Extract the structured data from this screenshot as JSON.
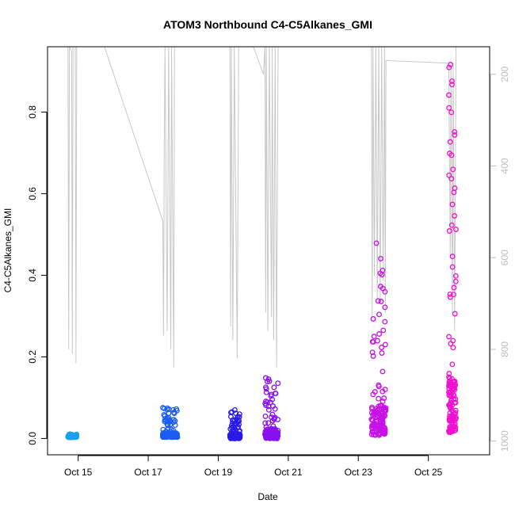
{
  "chart_data": {
    "type": "scatter",
    "title": "ATOM3 Northbound C4-C5Alkanes_GMI",
    "xlabel": "Date",
    "ylabel": "C4-C5Alkanes_GMI",
    "xlim": [
      "2016-10-14T03:00",
      "2016-10-26T18:00"
    ],
    "ylim": [
      -0.04,
      0.96
    ],
    "x_ticks": [
      {
        "label": "Oct 15",
        "date": "2016-10-15"
      },
      {
        "label": "Oct 17",
        "date": "2016-10-17"
      },
      {
        "label": "Oct 19",
        "date": "2016-10-19"
      },
      {
        "label": "Oct 21",
        "date": "2016-10-21"
      },
      {
        "label": "Oct 23",
        "date": "2016-10-23"
      },
      {
        "label": "Oct 25",
        "date": "2016-10-25"
      }
    ],
    "y_ticks": [
      "0.0",
      "0.2",
      "0.4",
      "0.6",
      "0.8"
    ],
    "y_tick_values": [
      0.0,
      0.2,
      0.4,
      0.6,
      0.8
    ],
    "right_axis": {
      "inverted": true,
      "ylim": [
        1030,
        140
      ],
      "ticks": [
        "200",
        "400",
        "600",
        "800",
        "1000"
      ],
      "tick_values": [
        200,
        400,
        600,
        800,
        1000
      ],
      "color": "#bdbdbd"
    },
    "grid": false,
    "colors": {
      "flight_1": "#1aa0f0",
      "flight_2": "#1a5cf0",
      "flight_3": "#2a1ae8",
      "flight_4": "#8a10f0",
      "flight_5": "#c810e8",
      "flight_6": "#f010d0",
      "right_axis_line": "#c8c8c8"
    },
    "flights": [
      {
        "start": "2016-10-14T17:00",
        "end": "2016-10-14T23:00",
        "color": "#1aa0f0",
        "y_min": 0.003,
        "y_max": 0.012
      },
      {
        "start": "2016-10-17T10:00",
        "end": "2016-10-17T20:00",
        "color": "#1a5cf0",
        "y_min": 0.003,
        "y_max": 0.076
      },
      {
        "start": "2016-10-19T08:00",
        "end": "2016-10-19T15:00",
        "color": "#2a1ae8",
        "y_min": 0.0,
        "y_max": 0.072
      },
      {
        "start": "2016-10-20T08:00",
        "end": "2016-10-20T17:00",
        "color": "#8a10f0",
        "y_min": 0.0,
        "y_max": 0.156
      },
      {
        "start": "2016-10-23T09:00",
        "end": "2016-10-23T19:00",
        "color": "#c810e8",
        "y_min": 0.008,
        "y_max": 0.5
      },
      {
        "start": "2016-10-25T14:00",
        "end": "2016-10-25T19:00",
        "color": "#f010d0",
        "y_min": 0.015,
        "y_max": 0.92
      }
    ],
    "right_axis_series": {
      "name": "",
      "points": [
        [
          "2016-10-14T17:00",
          140
        ],
        [
          "2016-10-14T17:30",
          800
        ],
        [
          "2016-10-14T18:00",
          140
        ],
        [
          "2016-10-14T19:30",
          150
        ],
        [
          "2016-10-14T20:00",
          810
        ],
        [
          "2016-10-14T20:30",
          140
        ],
        [
          "2016-10-14T22:00",
          140
        ],
        [
          "2016-10-14T22:30",
          830
        ],
        [
          "2016-10-14T23:00",
          140
        ],
        [
          "2016-10-15T18:00",
          140
        ],
        [
          "2016-10-17T10:00",
          520
        ],
        [
          "2016-10-17T10:30",
          770
        ],
        [
          "2016-10-17T11:00",
          370
        ],
        [
          "2016-10-17T11:30",
          140
        ],
        [
          "2016-10-17T13:00",
          760
        ],
        [
          "2016-10-17T14:00",
          140
        ],
        [
          "2016-10-17T15:30",
          800
        ],
        [
          "2016-10-17T16:00",
          140
        ],
        [
          "2016-10-17T17:30",
          840
        ],
        [
          "2016-10-17T18:00",
          140
        ],
        [
          "2016-10-17T19:30",
          140
        ],
        [
          "2016-10-19T08:00",
          140
        ],
        [
          "2016-10-19T08:30",
          750
        ],
        [
          "2016-10-19T09:00",
          140
        ],
        [
          "2016-10-19T10:00",
          780
        ],
        [
          "2016-10-19T11:00",
          140
        ],
        [
          "2016-10-19T13:00",
          820
        ],
        [
          "2016-10-19T14:00",
          140
        ],
        [
          "2016-10-20T00:00",
          140
        ],
        [
          "2016-10-20T07:00",
          200
        ],
        [
          "2016-10-20T08:00",
          140
        ],
        [
          "2016-10-20T08:30",
          720
        ],
        [
          "2016-10-20T09:00",
          140
        ],
        [
          "2016-10-20T10:00",
          760
        ],
        [
          "2016-10-20T11:00",
          140
        ],
        [
          "2016-10-20T12:30",
          730
        ],
        [
          "2016-10-20T13:00",
          140
        ],
        [
          "2016-10-20T14:00",
          780
        ],
        [
          "2016-10-20T15:00",
          140
        ],
        [
          "2016-10-20T16:00",
          840
        ],
        [
          "2016-10-20T17:00",
          140
        ],
        [
          "2016-10-23T09:00",
          140
        ],
        [
          "2016-10-23T09:30",
          730
        ],
        [
          "2016-10-23T10:00",
          140
        ],
        [
          "2016-10-23T11:00",
          640
        ],
        [
          "2016-10-23T12:00",
          140
        ],
        [
          "2016-10-23T13:00",
          690
        ],
        [
          "2016-10-23T14:00",
          140
        ],
        [
          "2016-10-23T15:00",
          700
        ],
        [
          "2016-10-23T16:00",
          140
        ],
        [
          "2016-10-23T17:00",
          650
        ],
        [
          "2016-10-23T18:00",
          140
        ],
        [
          "2016-10-23T18:30",
          720
        ],
        [
          "2016-10-23T19:00",
          170
        ],
        [
          "2016-10-25T14:00",
          176
        ],
        [
          "2016-10-25T15:00",
          600
        ],
        [
          "2016-10-25T15:30",
          176
        ],
        [
          "2016-10-25T16:30",
          720
        ],
        [
          "2016-10-25T17:00",
          176
        ],
        [
          "2016-10-25T18:00",
          760
        ],
        [
          "2016-10-25T19:00",
          140
        ]
      ]
    }
  }
}
